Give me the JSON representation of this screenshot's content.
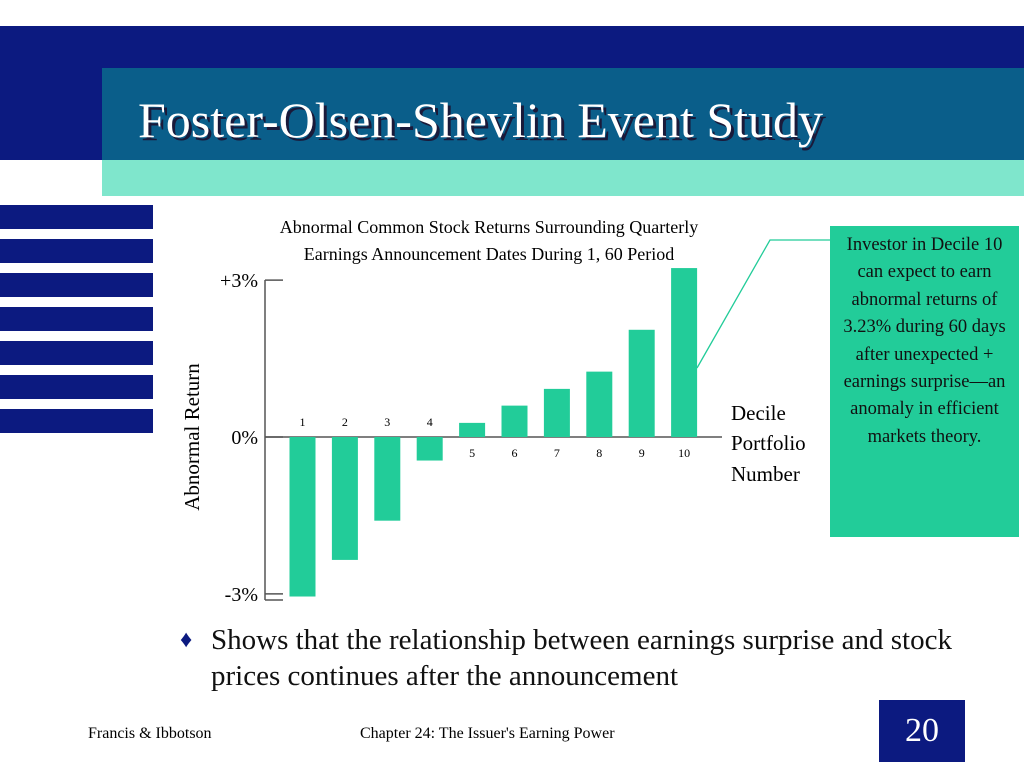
{
  "slide": {
    "title": "Foster-Olsen-Shevlin Event Study",
    "bullet_marker": "♦",
    "bullet_text": "Shows that the relationship between earnings surprise and stock prices continues after the announcement",
    "footer_left": "Francis & Ibbotson",
    "footer_center": "Chapter 24:  The Issuer's Earning Power",
    "page_number": "20",
    "callout_text": "Investor in Decile 10 can expect to earn abnormal returns of 3.23% during 60 days after unexpected + earnings surprise—an anomaly in efficient markets theory.",
    "colors": {
      "navy": "#0c1a80",
      "teal": "#0a5e8a",
      "mint": "#7fe6cc",
      "bar": "#22cc99"
    }
  },
  "chart_data": {
    "type": "bar",
    "title_lines": [
      "Abnormal Common Stock Returns Surrounding Quarterly",
      "Earnings Announcement Dates During 1, 60 Period"
    ],
    "ylabel": "Abnormal Return",
    "xlabel_lines": [
      "Decile",
      "Portfolio",
      "Number"
    ],
    "yticks": [
      {
        "value": 3,
        "label": "+3%"
      },
      {
        "value": 0,
        "label": "0%"
      },
      {
        "value": -3,
        "label": "-3%"
      }
    ],
    "ylim": [
      -3.9,
      3.6
    ],
    "categories": [
      "1",
      "2",
      "3",
      "4",
      "5",
      "6",
      "7",
      "8",
      "9",
      "10"
    ],
    "values": [
      -3.05,
      -2.35,
      -1.6,
      -0.45,
      0.27,
      0.6,
      0.92,
      1.25,
      2.05,
      3.23
    ],
    "bar_color": "#22cc99"
  }
}
